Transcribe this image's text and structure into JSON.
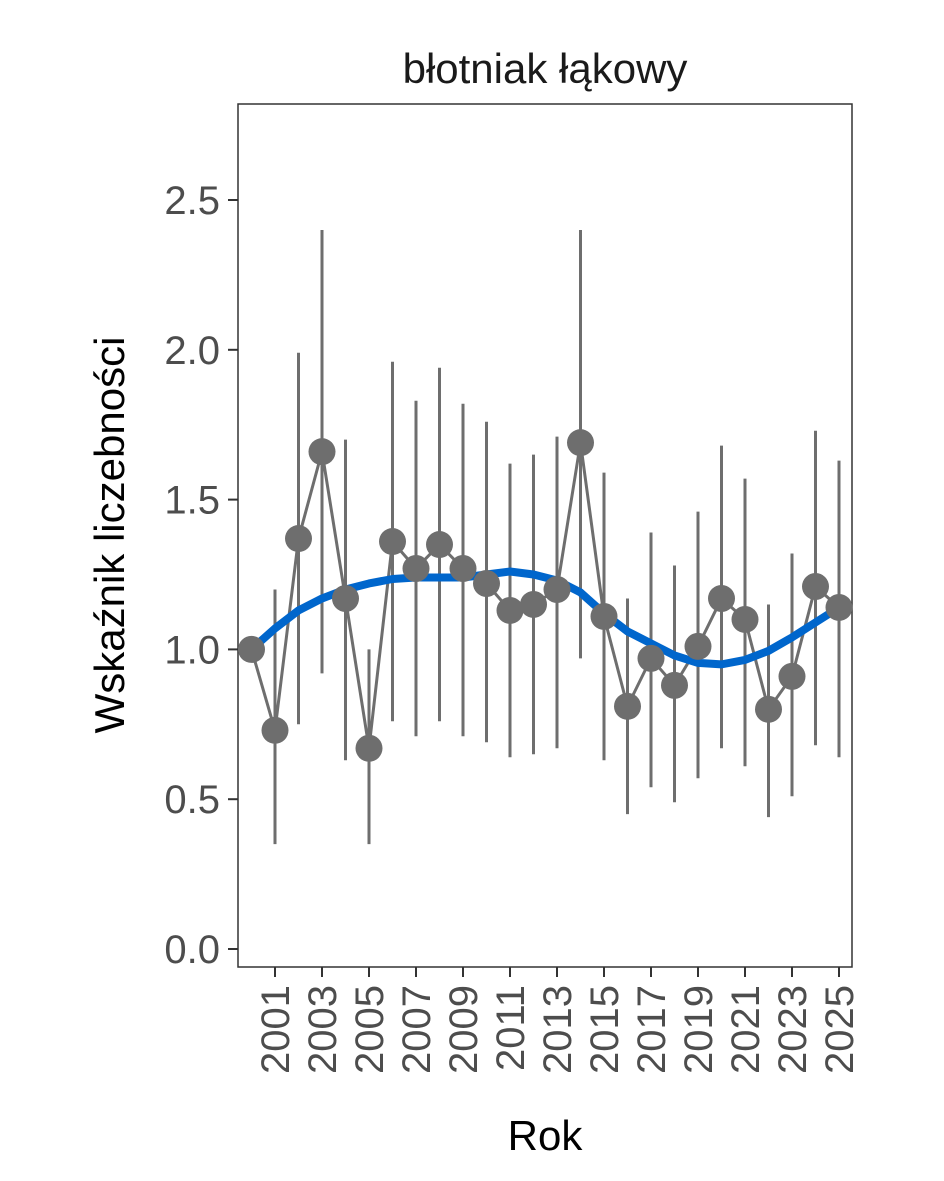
{
  "chart_data": {
    "type": "line",
    "title": "błotniak łąkowy",
    "xlabel": "Rok",
    "ylabel": "Wskaźnik liczebności",
    "ylim": [
      -0.05,
      2.82
    ],
    "xlim": [
      1999.4,
      2025.6
    ],
    "yticks": [
      "0.0",
      "0.5",
      "1.0",
      "1.5",
      "2.0",
      "2.5"
    ],
    "xticks": [
      "2001",
      "2003",
      "2005",
      "2007",
      "2009",
      "2011",
      "2013",
      "2015",
      "2017",
      "2019",
      "2021",
      "2023",
      "2025"
    ],
    "grid": false,
    "colors": {
      "points": "#6e6e6e",
      "trend": "#0066cc"
    },
    "series": [
      {
        "name": "index",
        "x": [
          2000,
          2001,
          2002,
          2003,
          2004,
          2005,
          2006,
          2007,
          2008,
          2009,
          2010,
          2011,
          2012,
          2013,
          2014,
          2015,
          2016,
          2017,
          2018,
          2019,
          2020,
          2021,
          2022,
          2023,
          2024,
          2025
        ],
        "y": [
          1.0,
          0.73,
          1.37,
          1.66,
          1.17,
          0.67,
          1.36,
          1.27,
          1.35,
          1.27,
          1.22,
          1.13,
          1.15,
          1.2,
          1.69,
          1.11,
          0.81,
          0.97,
          0.88,
          1.01,
          1.17,
          1.1,
          0.8,
          0.91,
          1.21,
          1.14
        ],
        "lower": [
          null,
          0.35,
          0.75,
          0.92,
          0.63,
          0.35,
          0.76,
          0.71,
          0.76,
          0.71,
          0.69,
          0.64,
          0.65,
          0.67,
          0.97,
          0.63,
          0.45,
          0.54,
          0.49,
          0.57,
          0.67,
          0.61,
          0.44,
          0.51,
          0.68,
          0.64
        ],
        "upper": [
          null,
          1.2,
          1.99,
          2.4,
          1.7,
          1.0,
          1.96,
          1.83,
          1.94,
          1.82,
          1.76,
          1.62,
          1.65,
          1.71,
          2.4,
          1.59,
          1.17,
          1.39,
          1.28,
          1.46,
          1.68,
          1.57,
          1.15,
          1.32,
          1.73,
          1.63
        ]
      },
      {
        "name": "trend",
        "x": [
          2000,
          2001,
          2002,
          2003,
          2004,
          2005,
          2006,
          2007,
          2008,
          2009,
          2010,
          2011,
          2012,
          2013,
          2014,
          2015,
          2016,
          2017,
          2018,
          2019,
          2020,
          2021,
          2022,
          2023,
          2024,
          2025
        ],
        "y": [
          1.0,
          1.07,
          1.13,
          1.17,
          1.2,
          1.22,
          1.235,
          1.24,
          1.24,
          1.24,
          1.25,
          1.26,
          1.25,
          1.23,
          1.19,
          1.12,
          1.06,
          1.02,
          0.98,
          0.955,
          0.95,
          0.965,
          0.995,
          1.04,
          1.09,
          1.14
        ]
      }
    ]
  }
}
